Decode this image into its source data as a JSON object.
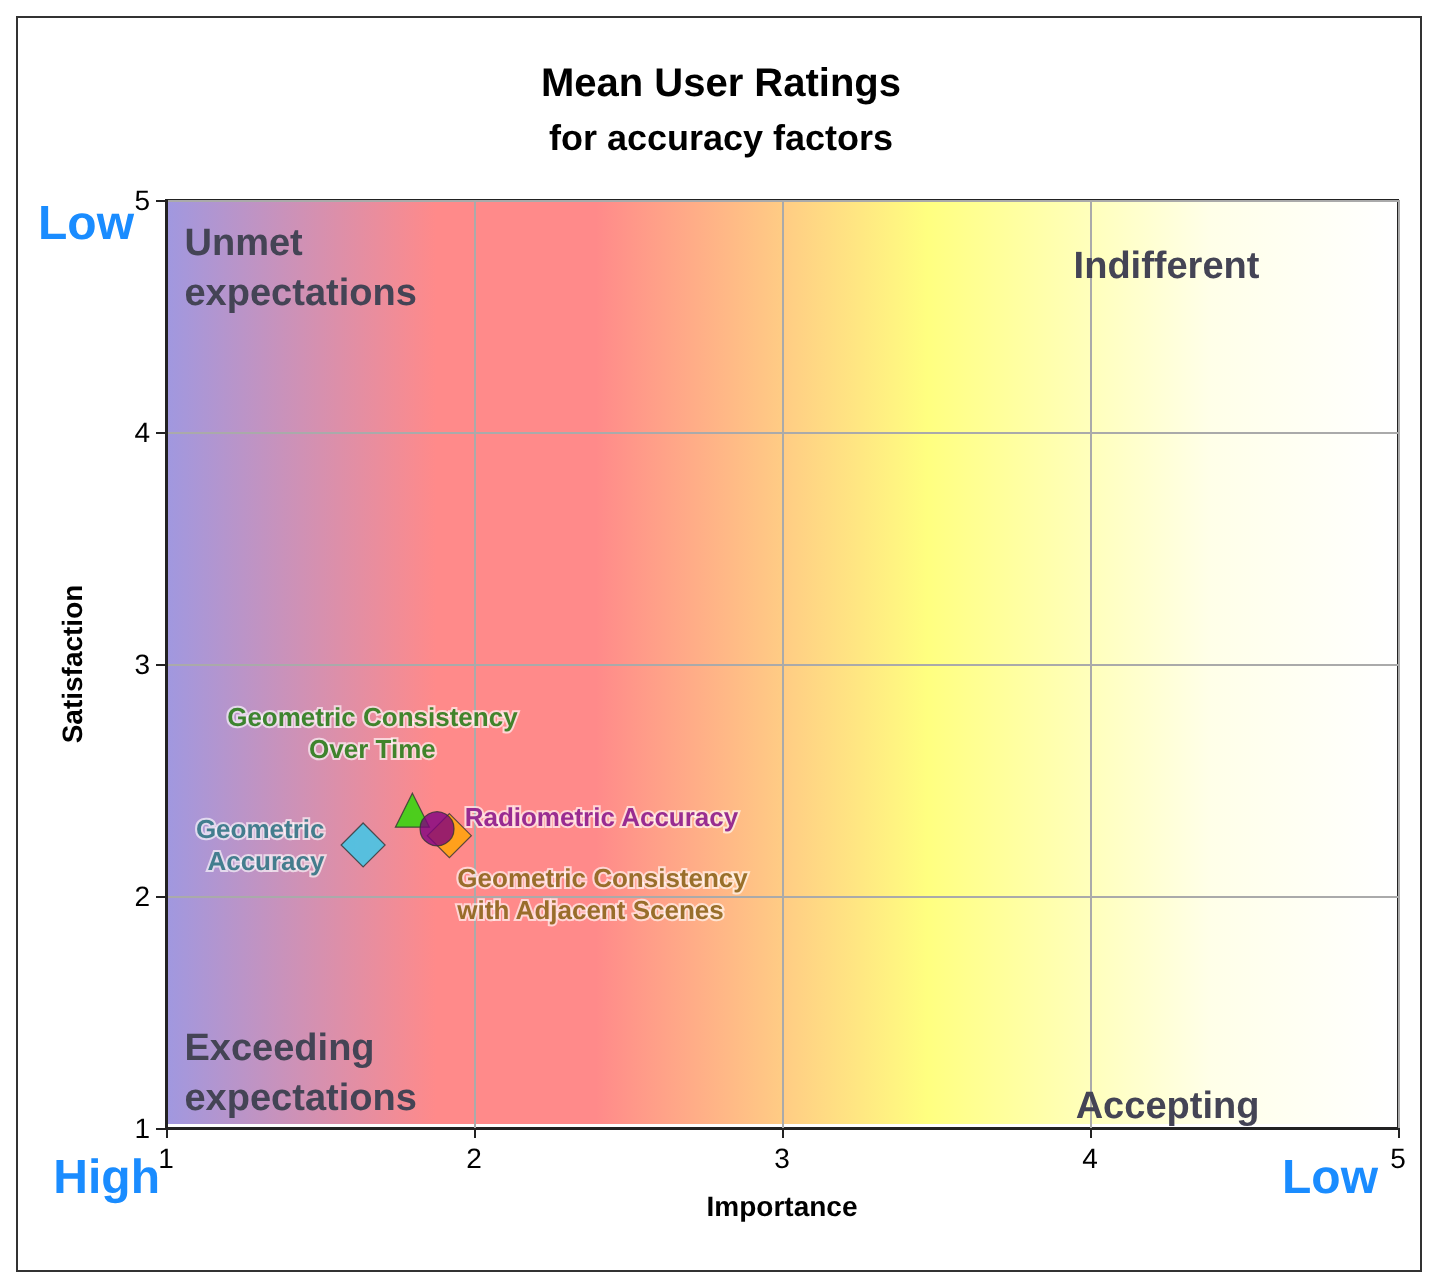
{
  "chart_data": {
    "type": "scatter",
    "title": "Mean User Ratings",
    "subtitle": "for accuracy factors",
    "xlabel": "Importance",
    "ylabel": "Satisfaction",
    "series": [
      {
        "name": "Geometric\nAccuracy",
        "color": "#33ccee",
        "marker": "diamond",
        "x": [
          1.64
        ],
        "values": [
          2.22
        ]
      },
      {
        "name": "Geometric Consistency\nOver Time",
        "color": "#22dd00",
        "marker": "triangle",
        "x": [
          1.8
        ],
        "values": [
          2.37
        ]
      },
      {
        "name": "Geometric Consistency\nwith Adjacent Scenes",
        "color": "#ffa500",
        "marker": "diamond",
        "x": [
          1.92
        ],
        "values": [
          2.26
        ]
      },
      {
        "name": "Radiometric Accuracy",
        "color": "#800080",
        "marker": "circle",
        "x": [
          1.88
        ],
        "values": [
          2.29
        ]
      }
    ],
    "xlim": [
      1,
      5
    ],
    "ylim": [
      1,
      5
    ],
    "xticks": [
      1,
      2,
      3,
      4,
      5
    ],
    "yticks": [
      1,
      2,
      3,
      4,
      5
    ],
    "grid": true,
    "legend": false,
    "annotations": [
      "Unmet\nexpectations",
      "Indifferent",
      "Exceeding\nexpectations",
      "Accepting",
      "Low",
      "High",
      "Low"
    ]
  }
}
